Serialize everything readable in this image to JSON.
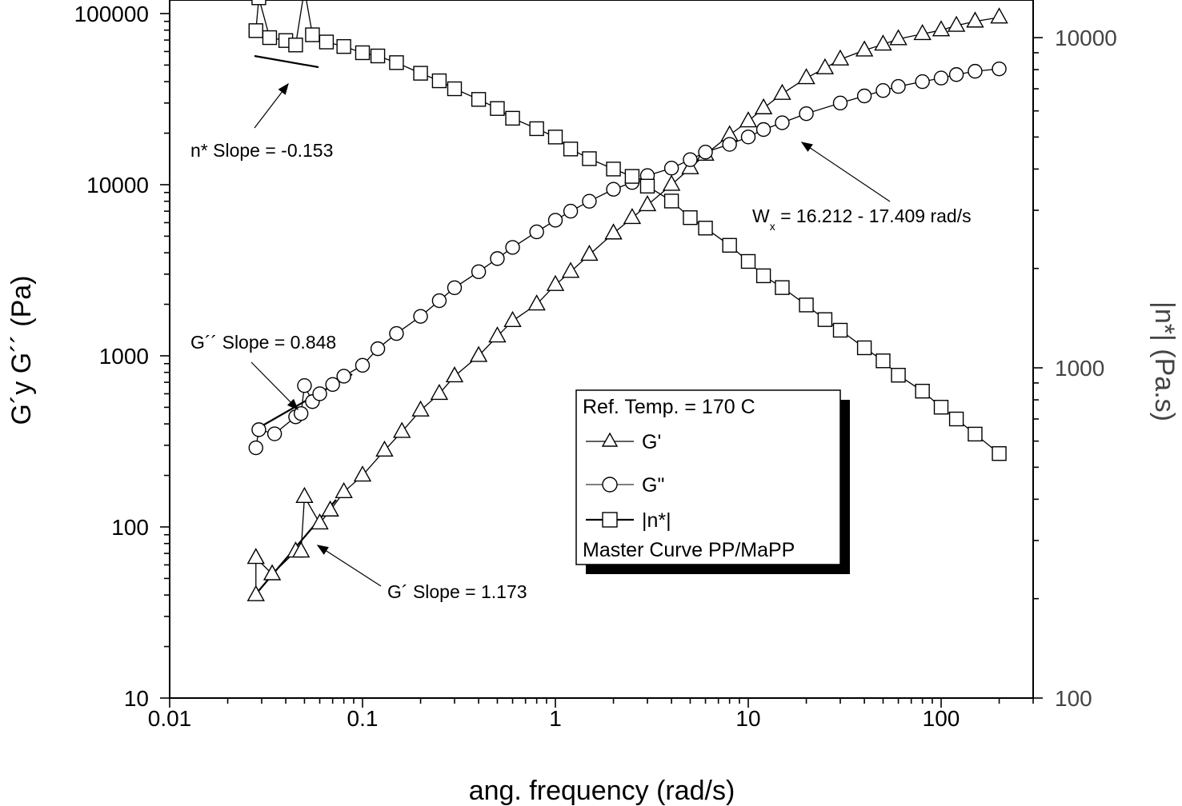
{
  "chart_data": {
    "type": "scatter",
    "xlabel": "ang. frequency (rad/s)",
    "ylabel": "G´y G´´ (Pa)",
    "y2label": "|n*| (Pa.s)",
    "x_scale": "log",
    "y_scale": "log",
    "y2_scale": "log",
    "xlim": [
      0.01,
      300
    ],
    "ylim": [
      10,
      120000
    ],
    "y2lim": [
      100,
      13000
    ],
    "x_ticks": [
      {
        "v": 0.01,
        "label": "0.01"
      },
      {
        "v": 0.1,
        "label": "0.1"
      },
      {
        "v": 1,
        "label": "1"
      },
      {
        "v": 10,
        "label": "10"
      },
      {
        "v": 100,
        "label": "100"
      }
    ],
    "y_ticks": [
      {
        "v": 10,
        "label": "10"
      },
      {
        "v": 100,
        "label": "100"
      },
      {
        "v": 1000,
        "label": "1000"
      },
      {
        "v": 10000,
        "label": "10000"
      },
      {
        "v": 100000,
        "label": "100000"
      }
    ],
    "y2_ticks": [
      {
        "v": 100,
        "label": "100"
      },
      {
        "v": 1000,
        "label": "1000"
      },
      {
        "v": 10000,
        "label": "10000"
      }
    ],
    "grid": false,
    "legend": {
      "position": "center-right",
      "title": "Ref. Temp. = 170 C",
      "footer": "Master Curve PP/MaPP",
      "entries": [
        {
          "name": "G'",
          "marker": "triangle"
        },
        {
          "name": "G\"",
          "marker": "circle"
        },
        {
          "name": "|n*|",
          "marker": "square"
        }
      ]
    },
    "series": [
      {
        "name": "G'",
        "axis": "left",
        "marker": "triangle",
        "x": [
          0.028,
          0.028,
          0.034,
          0.045,
          0.048,
          0.05,
          0.06,
          0.068,
          0.08,
          0.1,
          0.13,
          0.16,
          0.2,
          0.25,
          0.3,
          0.4,
          0.5,
          0.6,
          0.8,
          1.0,
          1.2,
          1.5,
          2.0,
          2.5,
          3.0,
          4.0,
          5.0,
          6.0,
          8.0,
          10,
          12,
          15,
          20,
          25,
          30,
          40,
          50,
          60,
          80,
          100,
          120,
          150,
          200
        ],
        "y": [
          40,
          66,
          53,
          72,
          72,
          150,
          105,
          125,
          160,
          200,
          280,
          360,
          480,
          600,
          760,
          1000,
          1300,
          1600,
          2000,
          2600,
          3100,
          3900,
          5200,
          6400,
          7600,
          10000,
          12500,
          15000,
          19500,
          23500,
          28000,
          34000,
          42000,
          48000,
          54000,
          61000,
          66000,
          71000,
          76000,
          80000,
          85000,
          90000,
          95000
        ]
      },
      {
        "name": "G\"",
        "axis": "left",
        "marker": "circle",
        "x": [
          0.028,
          0.029,
          0.035,
          0.045,
          0.048,
          0.05,
          0.055,
          0.06,
          0.07,
          0.08,
          0.1,
          0.12,
          0.15,
          0.2,
          0.25,
          0.3,
          0.4,
          0.5,
          0.6,
          0.8,
          1.0,
          1.2,
          1.5,
          2.0,
          2.5,
          3.0,
          4.0,
          5.0,
          6.0,
          8.0,
          10,
          12,
          15,
          20,
          30,
          40,
          50,
          60,
          80,
          100,
          120,
          150,
          200
        ],
        "y": [
          290,
          370,
          350,
          440,
          460,
          670,
          540,
          600,
          680,
          760,
          880,
          1100,
          1350,
          1700,
          2100,
          2500,
          3100,
          3700,
          4300,
          5300,
          6200,
          7000,
          8000,
          9400,
          10300,
          11300,
          12500,
          14000,
          15500,
          17200,
          19000,
          21000,
          23000,
          26000,
          30000,
          33000,
          35500,
          37500,
          40000,
          42000,
          44000,
          46000,
          47500
        ]
      },
      {
        "name": "|n*|",
        "axis": "right",
        "marker": "square",
        "x": [
          0.028,
          0.029,
          0.033,
          0.04,
          0.045,
          0.05,
          0.055,
          0.065,
          0.08,
          0.1,
          0.12,
          0.15,
          0.2,
          0.25,
          0.3,
          0.4,
          0.5,
          0.6,
          0.8,
          1.0,
          1.2,
          1.5,
          2.0,
          2.5,
          3.0,
          4.0,
          5.0,
          6.0,
          8.0,
          10,
          12,
          15,
          20,
          25,
          30,
          40,
          50,
          60,
          80,
          100,
          120,
          150,
          200
        ],
        "y": [
          10500,
          13200,
          10000,
          9800,
          9500,
          14000,
          10200,
          9700,
          9400,
          9000,
          8800,
          8400,
          7800,
          7400,
          7000,
          6500,
          6100,
          5700,
          5300,
          5000,
          4600,
          4300,
          4000,
          3800,
          3550,
          3200,
          2850,
          2650,
          2350,
          2100,
          1900,
          1750,
          1550,
          1400,
          1300,
          1150,
          1050,
          950,
          850,
          760,
          700,
          630,
          550
        ]
      }
    ],
    "annotations": [
      {
        "text": "n* Slope = -0.153"
      },
      {
        "text": "G´´ Slope = 0.848"
      },
      {
        "text": "G´ Slope = 1.173"
      },
      {
        "text_main": "W",
        "text_sub": "x",
        "text_rest": " = 16.212 - 17.409 rad/s"
      }
    ]
  }
}
